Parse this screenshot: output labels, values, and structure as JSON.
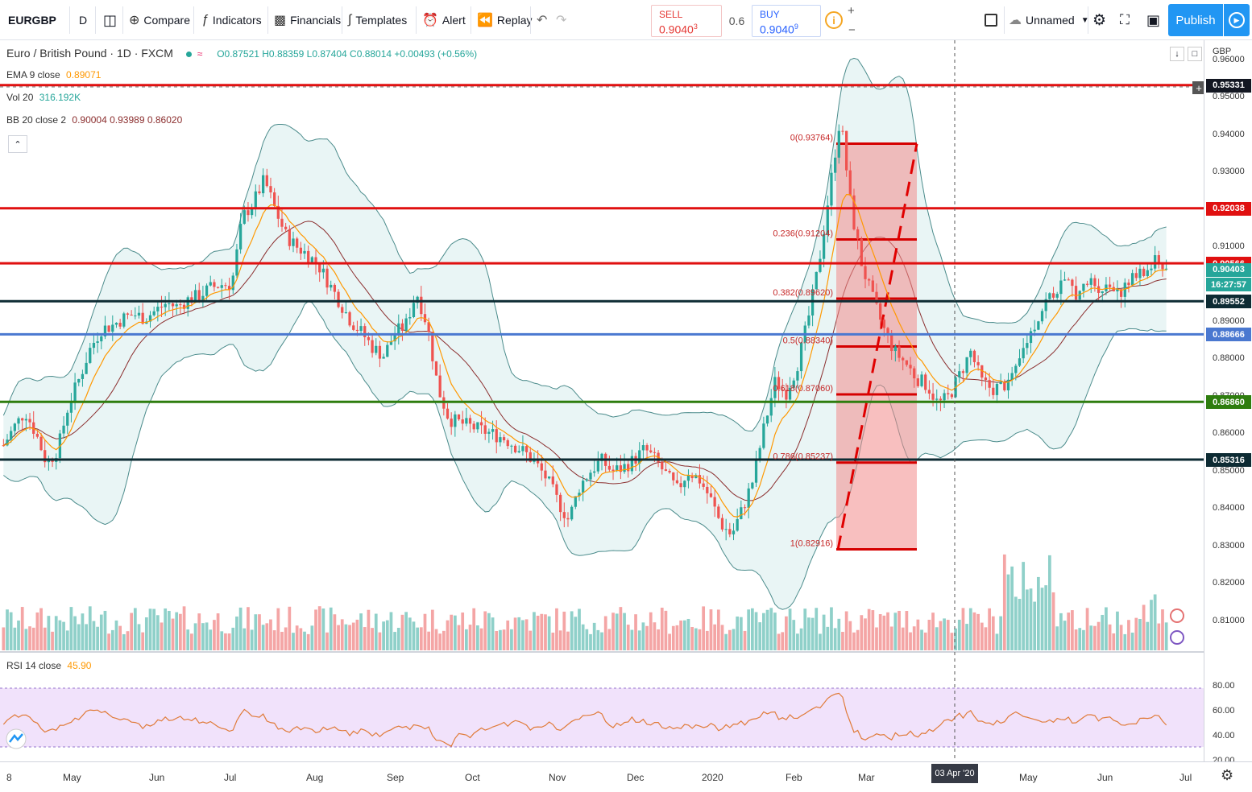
{
  "toolbar": {
    "symbol": "EURGBP",
    "interval": "D",
    "compare": "Compare",
    "indicators": "Indicators",
    "financials": "Financials",
    "templates": "Templates",
    "alert": "Alert",
    "replay": "Replay",
    "sell_label": "SELL",
    "sell_price": "0.9040",
    "sell_sup": "3",
    "spread": "0.6",
    "buy_label": "BUY",
    "buy_price": "0.9040",
    "buy_sup": "9",
    "layout_name": "Unnamed",
    "publish": "Publish"
  },
  "legend": {
    "title": "Euro / British Pound · 1D · FXCM",
    "ohlc": "O0.87521 H0.88359 L0.87404 C0.88014 +0.00493 (+0.56%)",
    "ema_label": "EMA 9 close",
    "ema_value": "0.89071",
    "vol_label": "Vol 20",
    "vol_value": "316.192K",
    "bb_label": "BB 20 close 2",
    "bb_v1": "0.90004",
    "bb_v2": "0.93989",
    "bb_v3": "0.86020",
    "rsi_label": "RSI 14 close",
    "rsi_value": "45.90"
  },
  "fib": [
    {
      "label": "0(0.93764)",
      "price": 0.93764
    },
    {
      "label": "0.236(0.91204)",
      "price": 0.91204
    },
    {
      "label": "0.382(0.89620)",
      "price": 0.8962
    },
    {
      "label": "0.5(0.88340)",
      "price": 0.8834
    },
    {
      "label": "0.618(0.87060)",
      "price": 0.8706
    },
    {
      "label": "0.786(0.85237)",
      "price": 0.85237
    },
    {
      "label": "1(0.82916)",
      "price": 0.82916
    }
  ],
  "hlines": [
    {
      "price": 0.9533,
      "color": "#e01010"
    },
    {
      "price": 0.92038,
      "color": "#e01010"
    },
    {
      "price": 0.90566,
      "color": "#e01010"
    },
    {
      "price": 0.89552,
      "color": "#0d2b33"
    },
    {
      "price": 0.88666,
      "color": "#4a78d0"
    },
    {
      "price": 0.8686,
      "color": "#2e7d0e"
    },
    {
      "price": 0.85316,
      "color": "#0d2b33"
    }
  ],
  "price_axis": {
    "currency": "GBP",
    "ticks": [
      "0.96000",
      "0.95000",
      "0.94000",
      "0.93000",
      "0.92000",
      "0.91000",
      "0.90000",
      "0.89000",
      "0.88000",
      "0.87000",
      "0.86000",
      "0.85000",
      "0.84000",
      "0.83000",
      "0.82000",
      "0.81000"
    ],
    "tick_values": [
      0.96,
      0.95,
      0.94,
      0.93,
      0.92,
      0.91,
      0.9,
      0.89,
      0.88,
      0.87,
      0.86,
      0.85,
      0.84,
      0.83,
      0.82,
      0.81
    ],
    "labels": [
      {
        "text": "0.95331",
        "price": 0.9533,
        "bg": "#131722"
      },
      {
        "text": "0.92038",
        "price": 0.92038,
        "bg": "#e01010"
      },
      {
        "text": "0.90566",
        "price": 0.90566,
        "bg": "#e01010"
      },
      {
        "text": "0.90403",
        "price": 0.90403,
        "bg": "#26a69a"
      },
      {
        "text": "16:27:57",
        "price": 0.9,
        "bg": "#26a69a"
      },
      {
        "text": "0.89552",
        "price": 0.89552,
        "bg": "#0d2b33"
      },
      {
        "text": "0.88666",
        "price": 0.88666,
        "bg": "#4a78d0"
      },
      {
        "text": "0.86860",
        "price": 0.8686,
        "bg": "#2e7d0e"
      },
      {
        "text": "0.85316",
        "price": 0.85316,
        "bg": "#0d2b33"
      }
    ],
    "rsi_ticks": [
      "80.00",
      "60.00",
      "40.00",
      "20.00"
    ],
    "rsi_tick_values": [
      80,
      60,
      40,
      20
    ]
  },
  "time_axis": {
    "labels": [
      "8",
      "May",
      "Jun",
      "Jul",
      "Aug",
      "Sep",
      "Oct",
      "Nov",
      "Dec",
      "2020",
      "Feb",
      "Mar",
      "Apr",
      "May",
      "Jun",
      "Jul"
    ],
    "crosshair_label": "03 Apr '20"
  },
  "chart_data": {
    "type": "candlestick",
    "symbol": "EURGBP",
    "timeframe": "1D",
    "price_range": [
      0.8,
      0.961
    ],
    "rsi_range": [
      20,
      90
    ],
    "last_close": 0.88014,
    "series_note": "",
    "price_path": [
      0.857,
      0.862,
      0.866,
      0.86,
      0.852,
      0.856,
      0.868,
      0.875,
      0.883,
      0.888,
      0.889,
      0.891,
      0.892,
      0.891,
      0.893,
      0.895,
      0.894,
      0.896,
      0.897,
      0.899,
      0.9,
      0.9,
      0.918,
      0.922,
      0.928,
      0.92,
      0.913,
      0.91,
      0.908,
      0.905,
      0.9,
      0.895,
      0.89,
      0.887,
      0.883,
      0.881,
      0.887,
      0.889,
      0.898,
      0.889,
      0.872,
      0.864,
      0.863,
      0.862,
      0.861,
      0.86,
      0.859,
      0.857,
      0.855,
      0.852,
      0.848,
      0.842,
      0.837,
      0.846,
      0.85,
      0.853,
      0.85,
      0.851,
      0.853,
      0.856,
      0.853,
      0.849,
      0.845,
      0.85,
      0.848,
      0.843,
      0.836,
      0.833,
      0.84,
      0.848,
      0.862,
      0.874,
      0.871,
      0.878,
      0.89,
      0.905,
      0.925,
      0.945,
      0.92,
      0.905,
      0.896,
      0.888,
      0.882,
      0.879,
      0.875,
      0.873,
      0.868,
      0.87,
      0.876,
      0.882,
      0.874,
      0.872,
      0.873,
      0.875,
      0.884,
      0.89,
      0.896,
      0.899,
      0.9,
      0.897,
      0.901,
      0.899,
      0.9,
      0.898,
      0.902,
      0.903,
      0.906,
      0.904
    ]
  }
}
